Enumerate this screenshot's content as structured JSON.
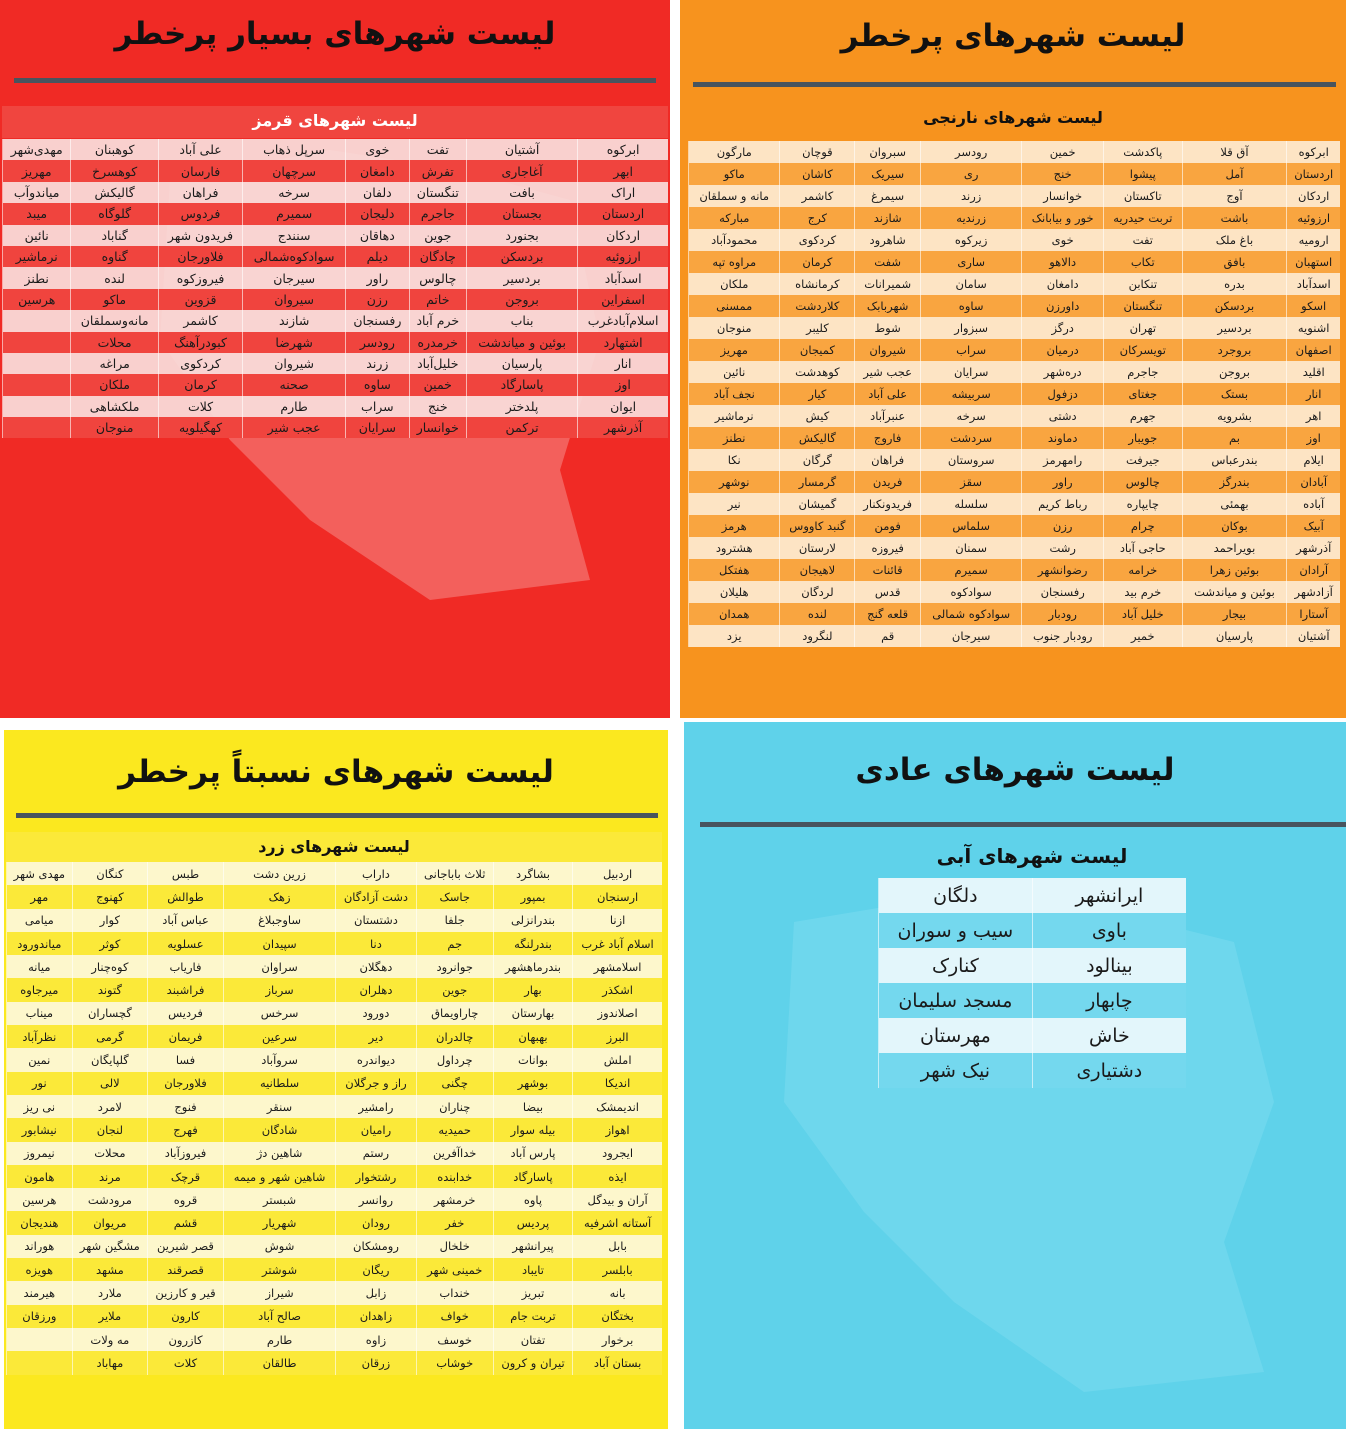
{
  "colors": {
    "red": "#f02a25",
    "orange": "#f7931e",
    "yellow": "#fbe81f",
    "blue": "#5fd2ea"
  },
  "red": {
    "title": "لیست شهرهای بسیار پرخطر",
    "subtitle": "لیست شهرهای قرمز",
    "rows": [
      [
        "ابرکوه",
        "آشتیان",
        "تفت",
        "خوی",
        "سرپل ذهاب",
        "علی آباد",
        "کوهبنان",
        "مهدی‌شهر"
      ],
      [
        "ابهر",
        "آغاجاری",
        "تفرش",
        "دامغان",
        "سرچهان",
        "فارسان",
        "کوهسرخ",
        "مهریز"
      ],
      [
        "اراک",
        "بافت",
        "تنگستان",
        "دلفان",
        "سرخه",
        "فراهان",
        "گالیکش",
        "میاندوآب"
      ],
      [
        "اردستان",
        "بجستان",
        "جاجرم",
        "دلیجان",
        "سمیرم",
        "فردوس",
        "گلوگاه",
        "میبد"
      ],
      [
        "اردکان",
        "بجنورد",
        "جوین",
        "دهاقان",
        "سنندج",
        "فریدون شهر",
        "گناباد",
        "نائین"
      ],
      [
        "ارزوئیه",
        "بردسکن",
        "چادگان",
        "دیلم",
        "سوادکوه‌شمالی",
        "فلاورجان",
        "گناوه",
        "نرماشیر"
      ],
      [
        "اسدآباد",
        "بردسیر",
        "چالوس",
        "راور",
        "سیرجان",
        "فیروزکوه",
        "لنده",
        "نطنز"
      ],
      [
        "اسفراین",
        "بروجن",
        "خاتم",
        "رزن",
        "سیروان",
        "قزوین",
        "ماکو",
        "هرسین"
      ],
      [
        "اسلام‌آبادغرب",
        "بناب",
        "خرم آباد",
        "رفسنجان",
        "شازند",
        "کاشمر",
        "مانه‌وسملقان",
        ""
      ],
      [
        "اشتهارد",
        "بوئین و میاندشت",
        "خرمدره",
        "رودسر",
        "شهرضا",
        "کبودرآهنگ",
        "محلات",
        ""
      ],
      [
        "انار",
        "پارسیان",
        "خلیل‌آباد",
        "زرند",
        "شیروان",
        "کردکوی",
        "مراغه",
        ""
      ],
      [
        "اوز",
        "پاسارگاد",
        "خمین",
        "ساوه",
        "صحنه",
        "کرمان",
        "ملکان",
        ""
      ],
      [
        "ایوان",
        "پلدختر",
        "خنج",
        "سراب",
        "طارم",
        "کلات",
        "ملکشاهی",
        ""
      ],
      [
        "آذرشهر",
        "ترکمن",
        "خوانسار",
        "سرایان",
        "عجب شیر",
        "کهگیلویه",
        "منوجان",
        ""
      ]
    ]
  },
  "orange": {
    "title": "لیست شهرهای پرخطر",
    "subtitle": "لیست شهرهای نارنجی",
    "rows": [
      [
        "ابرکوه",
        "آق قلا",
        "پاکدشت",
        "خمین",
        "رودسر",
        "سبروان",
        "قوچان",
        "مارگون"
      ],
      [
        "اردستان",
        "آمل",
        "پیشوا",
        "خنج",
        "ری",
        "سیریک",
        "کاشان",
        "ماکو"
      ],
      [
        "اردکان",
        "آوج",
        "تاکستان",
        "خوانسار",
        "زرند",
        "سیمرغ",
        "کاشمر",
        "مانه و سملقان"
      ],
      [
        "ارزوئیه",
        "باشت",
        "تربت حیدریه",
        "خور و بیابانک",
        "زرندیه",
        "شازند",
        "کرج",
        "مبارکه"
      ],
      [
        "ارومیه",
        "باغ ملک",
        "تفت",
        "خوی",
        "زیرکوه",
        "شاهرود",
        "کردکوی",
        "محمودآباد"
      ],
      [
        "استهبان",
        "بافق",
        "تکاب",
        "دالاهو",
        "ساری",
        "شفت",
        "کرمان",
        "مراوه تپه"
      ],
      [
        "اسدآباد",
        "بدره",
        "تنکابن",
        "دامغان",
        "سامان",
        "شمیرانات",
        "کرمانشاه",
        "ملکان"
      ],
      [
        "اسکو",
        "بردسکن",
        "تنگستان",
        "داورزن",
        "ساوه",
        "شهربابک",
        "کلاردشت",
        "ممسنی"
      ],
      [
        "اشنویه",
        "بردسیر",
        "تهران",
        "درگز",
        "سبزوار",
        "شوط",
        "کلیبر",
        "منوجان"
      ],
      [
        "اصفهان",
        "بروجرد",
        "تویسرکان",
        "درمیان",
        "سراب",
        "شیروان",
        "کمیجان",
        "مهریز"
      ],
      [
        "اقلید",
        "بروجن",
        "جاجرم",
        "دره‌شهر",
        "سرایان",
        "عجب شیر",
        "کوهدشت",
        "نائین"
      ],
      [
        "انار",
        "بستک",
        "جغتای",
        "دزفول",
        "سربیشه",
        "علی آباد",
        "کیار",
        "نجف آباد"
      ],
      [
        "اهر",
        "بشرویه",
        "جهرم",
        "دشتی",
        "سرخه",
        "عنبرآباد",
        "کیش",
        "نرماشیر"
      ],
      [
        "اوز",
        "بم",
        "جویبار",
        "دماوند",
        "سردشت",
        "فاروج",
        "گالیکش",
        "نطنز"
      ],
      [
        "ایلام",
        "بندرعباس",
        "جیرفت",
        "رامهرمز",
        "سروستان",
        "فراهان",
        "گرگان",
        "نکا"
      ],
      [
        "آبادان",
        "بندرگز",
        "چالوس",
        "راور",
        "سقز",
        "فریدن",
        "گرمسار",
        "نوشهر"
      ],
      [
        "آباده",
        "بهمئی",
        "چایپاره",
        "رباط کریم",
        "سلسله",
        "فریدونکنار",
        "گمیشان",
        "نیر"
      ],
      [
        "آبیک",
        "بوکان",
        "چرام",
        "رزن",
        "سلماس",
        "فومن",
        "گنبد کاووس",
        "هرمز"
      ],
      [
        "آذرشهر",
        "بویراحمد",
        "حاجی آباد",
        "رشت",
        "سمنان",
        "فیروزه",
        "لارستان",
        "هشترود"
      ],
      [
        "آرادان",
        "بوئین زهرا",
        "خرامه",
        "رضوانشهر",
        "سمیرم",
        "قائنات",
        "لاهیجان",
        "هفتکل"
      ],
      [
        "آزادشهر",
        "بوئین و میاندشت",
        "خرم بید",
        "رفسنجان",
        "سوادکوه",
        "قدس",
        "لردگان",
        "هلیلان"
      ],
      [
        "آستارا",
        "بیجار",
        "خلیل آباد",
        "رودبار",
        "سوادکوه شمالی",
        "قلعه گنج",
        "لنده",
        "همدان"
      ],
      [
        "آشتیان",
        "پارسیان",
        "خمیر",
        "رودبار جنوب",
        "سیرجان",
        "قم",
        "لنگرود",
        "یزد"
      ]
    ]
  },
  "yellow": {
    "title": "لیست شهرهای نسبتاً پرخطر",
    "subtitle": "لیست شهرهای زرد",
    "rows": [
      [
        "اردبیل",
        "بشاگرد",
        "ثلاث باباجانی",
        "داراب",
        "زرین دشت",
        "طبس",
        "کنگان",
        "مهدی شهر"
      ],
      [
        "ارسنجان",
        "بمپور",
        "جاسک",
        "دشت آزادگان",
        "زهک",
        "طوالش",
        "کهنوج",
        "مهر"
      ],
      [
        "ازنا",
        "بندرانزلی",
        "جلفا",
        "دشتستان",
        "ساوجبلاغ",
        "عباس آباد",
        "کوار",
        "میامی"
      ],
      [
        "اسلام آباد غرب",
        "بندرلنگه",
        "جم",
        "دنا",
        "سپیدان",
        "عسلویه",
        "کوثر",
        "میاندورود"
      ],
      [
        "اسلامشهر",
        "بندرماهشهر",
        "جوانرود",
        "دهگلان",
        "سراوان",
        "فاریاب",
        "کوه‌چنار",
        "میانه"
      ],
      [
        "اشکذر",
        "بهار",
        "جوین",
        "دهلران",
        "سرباز",
        "فراشبند",
        "گتوند",
        "میرجاوه"
      ],
      [
        "اصلاندوز",
        "بهارستان",
        "چاراویماق",
        "دورود",
        "سرخس",
        "فردیس",
        "گچساران",
        "میناب"
      ],
      [
        "البرز",
        "بهبهان",
        "چالدران",
        "دیر",
        "سرعین",
        "فریمان",
        "گرمی",
        "نظرآباد"
      ],
      [
        "املش",
        "بوانات",
        "چرداول",
        "دیواندره",
        "سروآباد",
        "فسا",
        "گلپایگان",
        "نمین"
      ],
      [
        "اندیکا",
        "بوشهر",
        "چگنی",
        "راز و جرگلان",
        "سلطانیه",
        "فلاورجان",
        "لالی",
        "نور"
      ],
      [
        "اندیمشک",
        "بیضا",
        "چناران",
        "رامشیر",
        "سنقر",
        "فنوج",
        "لامرد",
        "نی ریز"
      ],
      [
        "اهواز",
        "بیله سوار",
        "حمیدیه",
        "رامیان",
        "شادگان",
        "فهرج",
        "لنجان",
        "نیشابور"
      ],
      [
        "ایجرود",
        "پارس آباد",
        "خداآفرین",
        "رستم",
        "شاهین دژ",
        "فیروزآباد",
        "محلات",
        "نیمروز"
      ],
      [
        "ایذه",
        "پاسارگاد",
        "خدابنده",
        "رشتخوار",
        "شاهین شهر و میمه",
        "قرچک",
        "مرند",
        "هامون"
      ],
      [
        "آران و بیدگل",
        "پاوه",
        "خرمشهر",
        "روانسر",
        "شبستر",
        "قروه",
        "مرودشت",
        "هرسین"
      ],
      [
        "آستانه اشرفیه",
        "پردیس",
        "خفر",
        "رودان",
        "شهریار",
        "قشم",
        "مریوان",
        "هندیجان"
      ],
      [
        "بابل",
        "پیرانشهر",
        "خلخال",
        "رومشکان",
        "شوش",
        "قصر شیرین",
        "مشگین شهر",
        "هوراند"
      ],
      [
        "بابلسر",
        "تایباد",
        "خمینی شهر",
        "ریگان",
        "شوشتر",
        "قصرقند",
        "مشهد",
        "هویزه"
      ],
      [
        "بانه",
        "تبریز",
        "خنداب",
        "زابل",
        "شیراز",
        "قیر و کارزین",
        "ملارد",
        "هیرمند"
      ],
      [
        "بختگان",
        "تربت جام",
        "خواف",
        "زاهدان",
        "صالح آباد",
        "کارون",
        "ملایر",
        "ورزقان"
      ],
      [
        "برخوار",
        "تفتان",
        "خوسف",
        "زاوه",
        "طارم",
        "کازرون",
        "مه ولات",
        ""
      ],
      [
        "بستان آباد",
        "تیران و کرون",
        "خوشاب",
        "زرقان",
        "طالقان",
        "کلات",
        "مهاباد",
        ""
      ]
    ]
  },
  "blue": {
    "title": "لیست شهرهای عادی",
    "subtitle": "لیست شهرهای آبی",
    "rows": [
      [
        "ایرانشهر",
        "دلگان"
      ],
      [
        "باوی",
        "سیب و سوران"
      ],
      [
        "بینالود",
        "کنارک"
      ],
      [
        "چابهار",
        "مسجد سلیمان"
      ],
      [
        "خاش",
        "مهرستان"
      ],
      [
        "دشتیاری",
        "نیک شهر"
      ]
    ]
  }
}
